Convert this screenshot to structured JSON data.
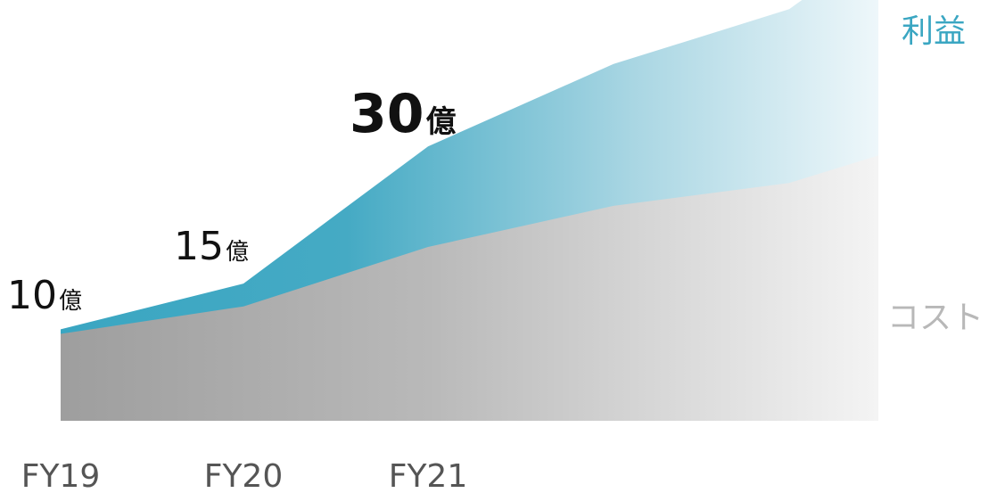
{
  "chart_data": {
    "type": "area",
    "categories": [
      "FY19",
      "FY20",
      "FY21",
      "",
      "",
      ""
    ],
    "series": [
      {
        "name": "コスト",
        "values": [
          9.5,
          12.5,
          19.0,
          23.5,
          26.0,
          29.0
        ]
      },
      {
        "name": "利益",
        "values": [
          10,
          15,
          30,
          39,
          45,
          52
        ]
      }
    ],
    "data_labels": [
      {
        "category": "FY19",
        "number": "10",
        "unit": "億"
      },
      {
        "category": "FY20",
        "number": "15",
        "unit": "億"
      },
      {
        "category": "FY21",
        "number": "30",
        "unit": "億"
      }
    ],
    "legend_placement": "right",
    "grid": false,
    "stacked": false,
    "colors": {
      "profit": "#3aa6c2",
      "cost": "#9e9e9e"
    },
    "ylim": [
      0,
      46
    ]
  }
}
